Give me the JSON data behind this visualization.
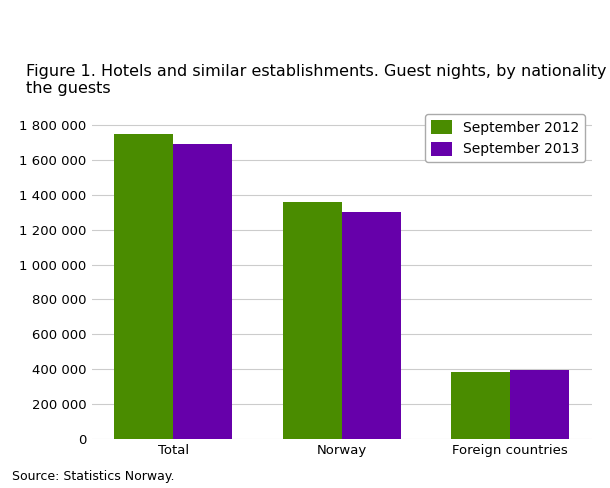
{
  "categories": [
    "Total",
    "Norway",
    "Foreign countries"
  ],
  "series": [
    {
      "label": "September 2012",
      "values": [
        1750000,
        1360000,
        385000
      ],
      "color": "#4a8c00"
    },
    {
      "label": "September 2013",
      "values": [
        1690000,
        1300000,
        395000
      ],
      "color": "#6600aa"
    }
  ],
  "title": "Figure 1. Hotels and similar establishments. Guest nights, by nationality of\nthe guests",
  "ylim": [
    0,
    1900000
  ],
  "yticks": [
    0,
    200000,
    400000,
    600000,
    800000,
    1000000,
    1200000,
    1400000,
    1600000,
    1800000
  ],
  "ytick_labels": [
    "0",
    "200 000",
    "400 000",
    "600 000",
    "800 000",
    "1 000 000",
    "1 200 000",
    "1 400 000",
    "1 600 000",
    "1 800 000"
  ],
  "source": "Source: Statistics Norway.",
  "bar_width": 0.35,
  "background_color": "#ffffff",
  "grid_color": "#cccccc",
  "title_fontsize": 11.5,
  "axis_fontsize": 9.5,
  "legend_fontsize": 10,
  "source_fontsize": 9
}
